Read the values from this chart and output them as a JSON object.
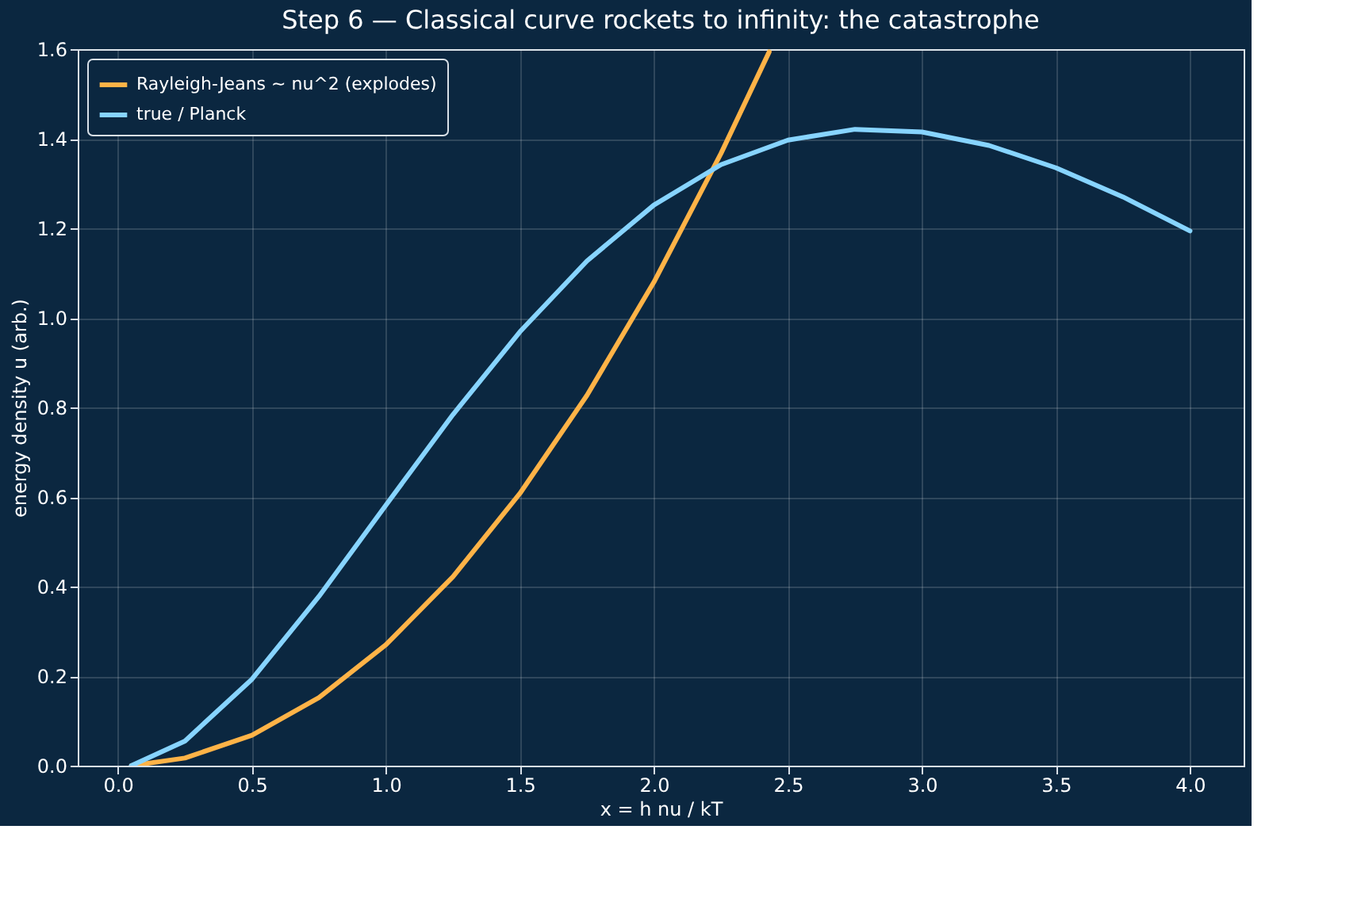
{
  "chart_data": {
    "type": "line",
    "title": "Step 6 — Classical curve rockets to infinity: the catastrophe",
    "xlabel": "x = h nu / kT",
    "ylabel": "energy density u (arb.)",
    "xlim": [
      -0.15,
      4.2
    ],
    "ylim": [
      0,
      1.6
    ],
    "xticks": [
      {
        "value": 0,
        "label": "0.0"
      },
      {
        "value": 0.5,
        "label": "0.5"
      },
      {
        "value": 1,
        "label": "1.0"
      },
      {
        "value": 1.5,
        "label": "1.5"
      },
      {
        "value": 2,
        "label": "2.0"
      },
      {
        "value": 2.5,
        "label": "2.5"
      },
      {
        "value": 3,
        "label": "3.0"
      },
      {
        "value": 3.5,
        "label": "3.5"
      },
      {
        "value": 4,
        "label": "4.0"
      }
    ],
    "yticks": [
      {
        "value": 0,
        "label": "0.0"
      },
      {
        "value": 0.2,
        "label": "0.2"
      },
      {
        "value": 0.4,
        "label": "0.4"
      },
      {
        "value": 0.6,
        "label": "0.6"
      },
      {
        "value": 0.8,
        "label": "0.8"
      },
      {
        "value": 1,
        "label": "1.0"
      },
      {
        "value": 1.2,
        "label": "1.2"
      },
      {
        "value": 1.4,
        "label": "1.4"
      },
      {
        "value": 1.6,
        "label": "1.6"
      }
    ],
    "grid": true,
    "legend": "top left",
    "marker": "none",
    "line_style": "solid",
    "series": [
      {
        "name": "Rayleigh-Jeans ~ nu^2 (explodes)",
        "color": "#ffb347",
        "x": [
          0.05,
          0.25,
          0.5,
          0.75,
          1.0,
          1.25,
          1.5,
          1.75,
          2.0,
          2.25,
          2.43
        ],
        "values": [
          0.0,
          0.017,
          0.068,
          0.152,
          0.27,
          0.422,
          0.608,
          0.827,
          1.08,
          1.367,
          1.594
        ]
      },
      {
        "name": "true / Planck",
        "color": "#87d4ff",
        "x": [
          0.05,
          0.25,
          0.5,
          0.75,
          1.0,
          1.25,
          1.5,
          1.75,
          2.0,
          2.25,
          2.5,
          2.75,
          3.0,
          3.25,
          3.5,
          3.75,
          4.0
        ],
        "values": [
          0.0,
          0.055,
          0.193,
          0.378,
          0.582,
          0.784,
          0.969,
          1.127,
          1.252,
          1.342,
          1.397,
          1.421,
          1.415,
          1.385,
          1.335,
          1.27,
          1.194
        ]
      }
    ]
  }
}
